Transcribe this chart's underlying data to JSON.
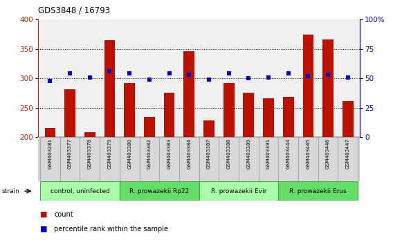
{
  "title": "GDS3848 / 16793",
  "samples": [
    "GSM403281",
    "GSM403377",
    "GSM403378",
    "GSM403379",
    "GSM403380",
    "GSM403382",
    "GSM403383",
    "GSM403384",
    "GSM403387",
    "GSM403388",
    "GSM403389",
    "GSM403391",
    "GSM403444",
    "GSM403445",
    "GSM403446",
    "GSM403447"
  ],
  "counts": [
    215,
    282,
    209,
    365,
    292,
    235,
    276,
    346,
    228,
    292,
    276,
    266,
    269,
    375,
    366,
    261
  ],
  "percentiles": [
    48,
    54,
    51,
    56,
    54,
    49,
    54,
    53,
    49,
    54,
    50,
    51,
    54,
    52,
    53,
    51
  ],
  "groups": [
    {
      "label": "control, uninfected",
      "start": 0,
      "end": 3,
      "color": "#aaffaa"
    },
    {
      "label": "R. prowazekii Rp22",
      "start": 4,
      "end": 7,
      "color": "#66dd66"
    },
    {
      "label": "R. prowazekii Evir",
      "start": 8,
      "end": 11,
      "color": "#aaffaa"
    },
    {
      "label": "R. prowazekii Erus",
      "start": 12,
      "end": 15,
      "color": "#66dd66"
    }
  ],
  "bar_color": "#bb1100",
  "dot_color": "#0000cc",
  "ylim_left": [
    200,
    400
  ],
  "ylim_right": [
    0,
    100
  ],
  "yticks_left": [
    200,
    250,
    300,
    350,
    400
  ],
  "yticks_right": [
    0,
    25,
    50,
    75,
    100
  ],
  "tick_label_color_left": "#cc2200",
  "tick_label_color_right": "#0000bb"
}
